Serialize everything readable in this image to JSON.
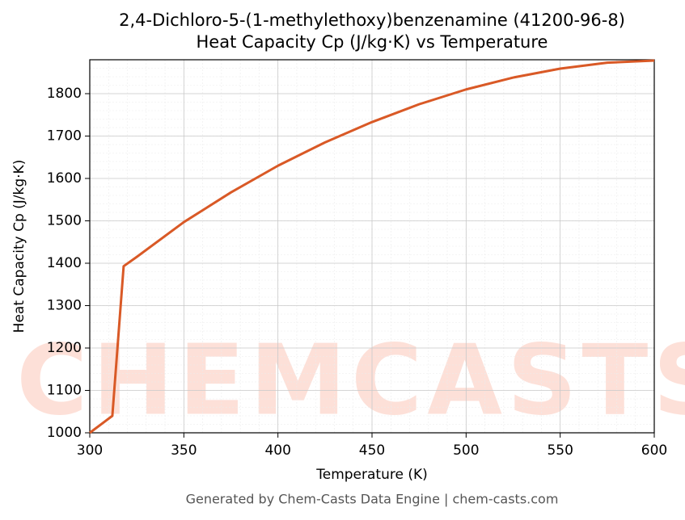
{
  "chart_data": {
    "type": "line",
    "title": "2,4-Dichloro-5-(1-methylethoxy)benzenamine (41200-96-8)",
    "subtitle": "Heat Capacity Cp (J/kg·K) vs Temperature",
    "x_label": "Temperature (K)",
    "y_label": "Heat Capacity Cp (J/kg·K)",
    "footer": "Generated by Chem-Casts Data Engine | chem-casts.com",
    "watermark": "CHEMCASTS",
    "x": [
      300,
      312,
      318,
      325,
      350,
      375,
      400,
      425,
      450,
      475,
      500,
      525,
      550,
      575,
      600
    ],
    "series": [
      {
        "name": "Cp",
        "color": "#d95926",
        "values": [
          1000,
          1040,
          1393,
          1415,
          1497,
          1567,
          1630,
          1685,
          1733,
          1775,
          1810,
          1838,
          1859,
          1873,
          1878
        ]
      }
    ],
    "xlim": [
      300,
      600
    ],
    "xticks": [
      300,
      350,
      400,
      450,
      500,
      550,
      600
    ],
    "ylim": [
      1000,
      1880
    ],
    "yticks": [
      1000,
      1100,
      1200,
      1300,
      1400,
      1500,
      1600,
      1700,
      1800
    ],
    "grid": true,
    "minor_grid": true
  }
}
